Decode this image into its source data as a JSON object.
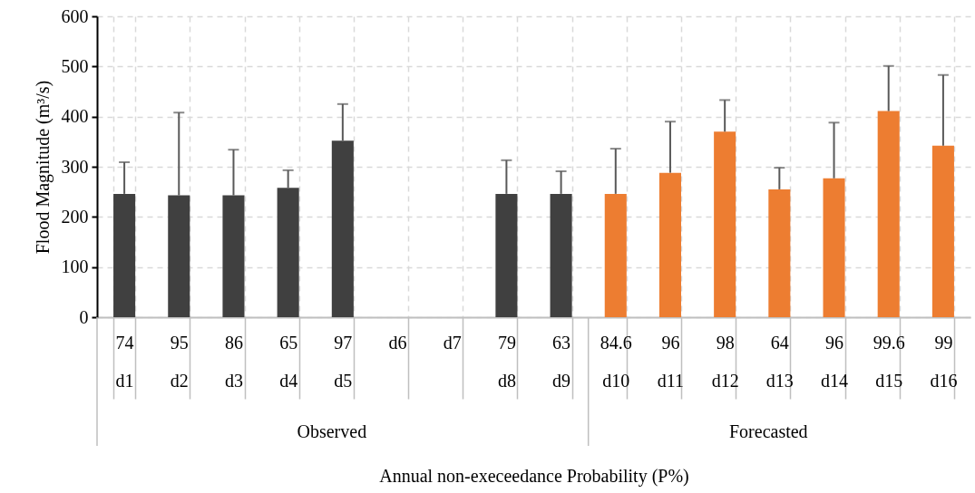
{
  "chart_data": {
    "type": "bar",
    "xlabel": "Annual non-execeedance Probability (P%)",
    "ylabel": "Flood Magnitude (m³/s)",
    "categories": [
      "74\nd1",
      "95\nd2",
      "86\nd3",
      "65\nd4",
      "97\nd5",
      "d6",
      "d7",
      "79\nd8",
      "63\nd9",
      "84.6\nd10",
      "96\nd11",
      "98\nd12",
      "64\nd13",
      "96\nd14",
      "99.6\nd15",
      "99\nd16"
    ],
    "series": [
      {
        "name": "Observed",
        "color": "#404040",
        "values": [
          246,
          243,
          243,
          258,
          352,
          null,
          null,
          246,
          246,
          null,
          null,
          null,
          null,
          null,
          null,
          null
        ],
        "errors": [
          [
            246,
            309
          ],
          [
            243,
            408
          ],
          [
            243,
            334
          ],
          [
            258,
            293
          ],
          [
            352,
            425
          ],
          null,
          null,
          [
            246,
            313
          ],
          [
            246,
            291
          ],
          null,
          null,
          null,
          null,
          null,
          null,
          null
        ]
      },
      {
        "name": "Forecasted",
        "color": "#ed7d31",
        "values": [
          null,
          null,
          null,
          null,
          null,
          null,
          null,
          null,
          null,
          246,
          288,
          370,
          255,
          277,
          411,
          342
        ],
        "errors": [
          null,
          null,
          null,
          null,
          null,
          null,
          null,
          null,
          null,
          [
            246,
            336
          ],
          [
            288,
            390
          ],
          [
            370,
            433
          ],
          [
            255,
            298
          ],
          [
            277,
            388
          ],
          [
            411,
            501
          ],
          [
            342,
            483
          ]
        ]
      }
    ],
    "ylim": [
      0,
      600
    ],
    "yticks": [
      0,
      100,
      200,
      300,
      400,
      500,
      600
    ],
    "grid": true
  }
}
